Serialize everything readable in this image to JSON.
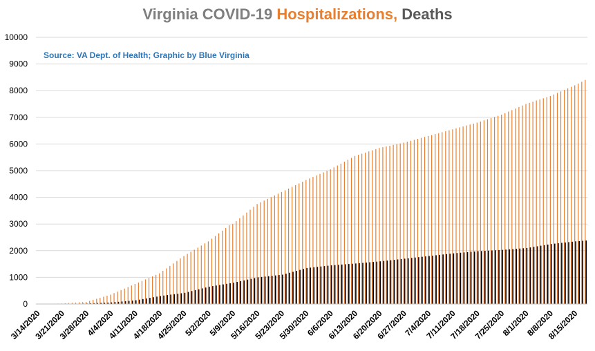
{
  "chart_data": {
    "type": "bar",
    "title_parts": [
      {
        "text": "Virginia COVID-19 ",
        "color": "#7f7f7f"
      },
      {
        "text": "Hospitalizations,",
        "color": "#e87f2e"
      },
      {
        "text": " Deaths",
        "color": "#595959"
      }
    ],
    "subtitle": "Source: VA Dept. of Health; Graphic by Blue Virginia",
    "subtitle_color": "#2e75b6",
    "ylim": [
      0,
      10000
    ],
    "yticks": [
      0,
      1000,
      2000,
      3000,
      4000,
      5000,
      6000,
      7000,
      8000,
      9000,
      10000
    ],
    "xticks": [
      "3/14/2020",
      "3/21/2020",
      "3/28/2020",
      "4/4/2020",
      "4/11/2020",
      "4/18/2020",
      "4/25/2020",
      "5/2/2020",
      "5/9/2020",
      "5/16/2020",
      "5/23/2020",
      "5/30/2020",
      "6/6/2020",
      "6/13/2020",
      "6/20/2020",
      "6/27/2020",
      "7/4/2020",
      "7/11/2020",
      "7/18/2020",
      "7/25/2020",
      "8/1/2020",
      "8/8/2020",
      "8/15/2020"
    ],
    "grid": true,
    "legend": "none",
    "start_date": "3/14/2020",
    "num_days": 158,
    "series": [
      {
        "name": "Hospitalizations",
        "color": "#e87f2e",
        "anchors": [
          [
            0,
            0
          ],
          [
            7,
            20
          ],
          [
            14,
            80
          ],
          [
            21,
            350
          ],
          [
            28,
            750
          ],
          [
            35,
            1150
          ],
          [
            42,
            1800
          ],
          [
            49,
            2350
          ],
          [
            55,
            2950
          ],
          [
            56,
            3000
          ],
          [
            63,
            3750
          ],
          [
            70,
            4200
          ],
          [
            77,
            4650
          ],
          [
            84,
            5050
          ],
          [
            91,
            5550
          ],
          [
            98,
            5850
          ],
          [
            105,
            6050
          ],
          [
            112,
            6300
          ],
          [
            119,
            6550
          ],
          [
            126,
            6800
          ],
          [
            133,
            7100
          ],
          [
            140,
            7500
          ],
          [
            147,
            7800
          ],
          [
            154,
            8200
          ],
          [
            157,
            8400
          ]
        ]
      },
      {
        "name": "Deaths",
        "color": "#000000",
        "anchors": [
          [
            0,
            0
          ],
          [
            7,
            3
          ],
          [
            14,
            20
          ],
          [
            21,
            60
          ],
          [
            28,
            140
          ],
          [
            35,
            300
          ],
          [
            42,
            420
          ],
          [
            49,
            650
          ],
          [
            56,
            800
          ],
          [
            63,
            1000
          ],
          [
            70,
            1100
          ],
          [
            77,
            1350
          ],
          [
            84,
            1450
          ],
          [
            91,
            1520
          ],
          [
            98,
            1600
          ],
          [
            105,
            1700
          ],
          [
            112,
            1800
          ],
          [
            119,
            1900
          ],
          [
            126,
            1980
          ],
          [
            133,
            2030
          ],
          [
            140,
            2100
          ],
          [
            147,
            2250
          ],
          [
            154,
            2350
          ],
          [
            157,
            2380
          ]
        ]
      }
    ]
  }
}
